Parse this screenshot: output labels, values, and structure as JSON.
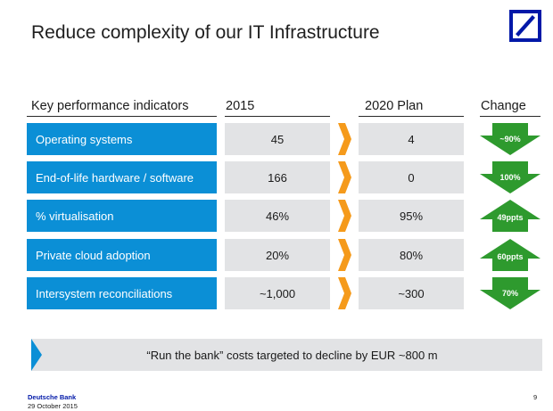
{
  "title": "Reduce complexity of our IT Infrastructure",
  "headers": {
    "kpi": "Key performance indicators",
    "y2015": "2015",
    "plan": "2020 Plan",
    "change": "Change"
  },
  "rows": [
    {
      "label": "Operating systems",
      "v2015": "45",
      "v2020": "4",
      "change": "~90%",
      "direction": "down"
    },
    {
      "label": "End-of-life hardware / software",
      "v2015": "166",
      "v2020": "0",
      "change": "100%",
      "direction": "down"
    },
    {
      "label": "% virtualisation",
      "v2015": "46%",
      "v2020": "95%",
      "change": "49ppts",
      "direction": "up"
    },
    {
      "label": "Private cloud adoption",
      "v2015": "20%",
      "v2020": "80%",
      "change": "60ppts",
      "direction": "up"
    },
    {
      "label": "Intersystem reconciliations",
      "v2015": "~1,000",
      "v2020": "~300",
      "change": "70%",
      "direction": "down"
    }
  ],
  "banner": "“Run the bank” costs targeted to decline by EUR ~800 m",
  "footer": {
    "company": "Deutsche Bank",
    "date": "29 October 2015",
    "page": "9"
  },
  "colors": {
    "brand_blue": "#0018a8",
    "row_blue": "#0b8fd6",
    "cell_grey": "#e2e3e5",
    "chevron_orange": "#f59a1b",
    "change_green": "#2e9a2e"
  }
}
